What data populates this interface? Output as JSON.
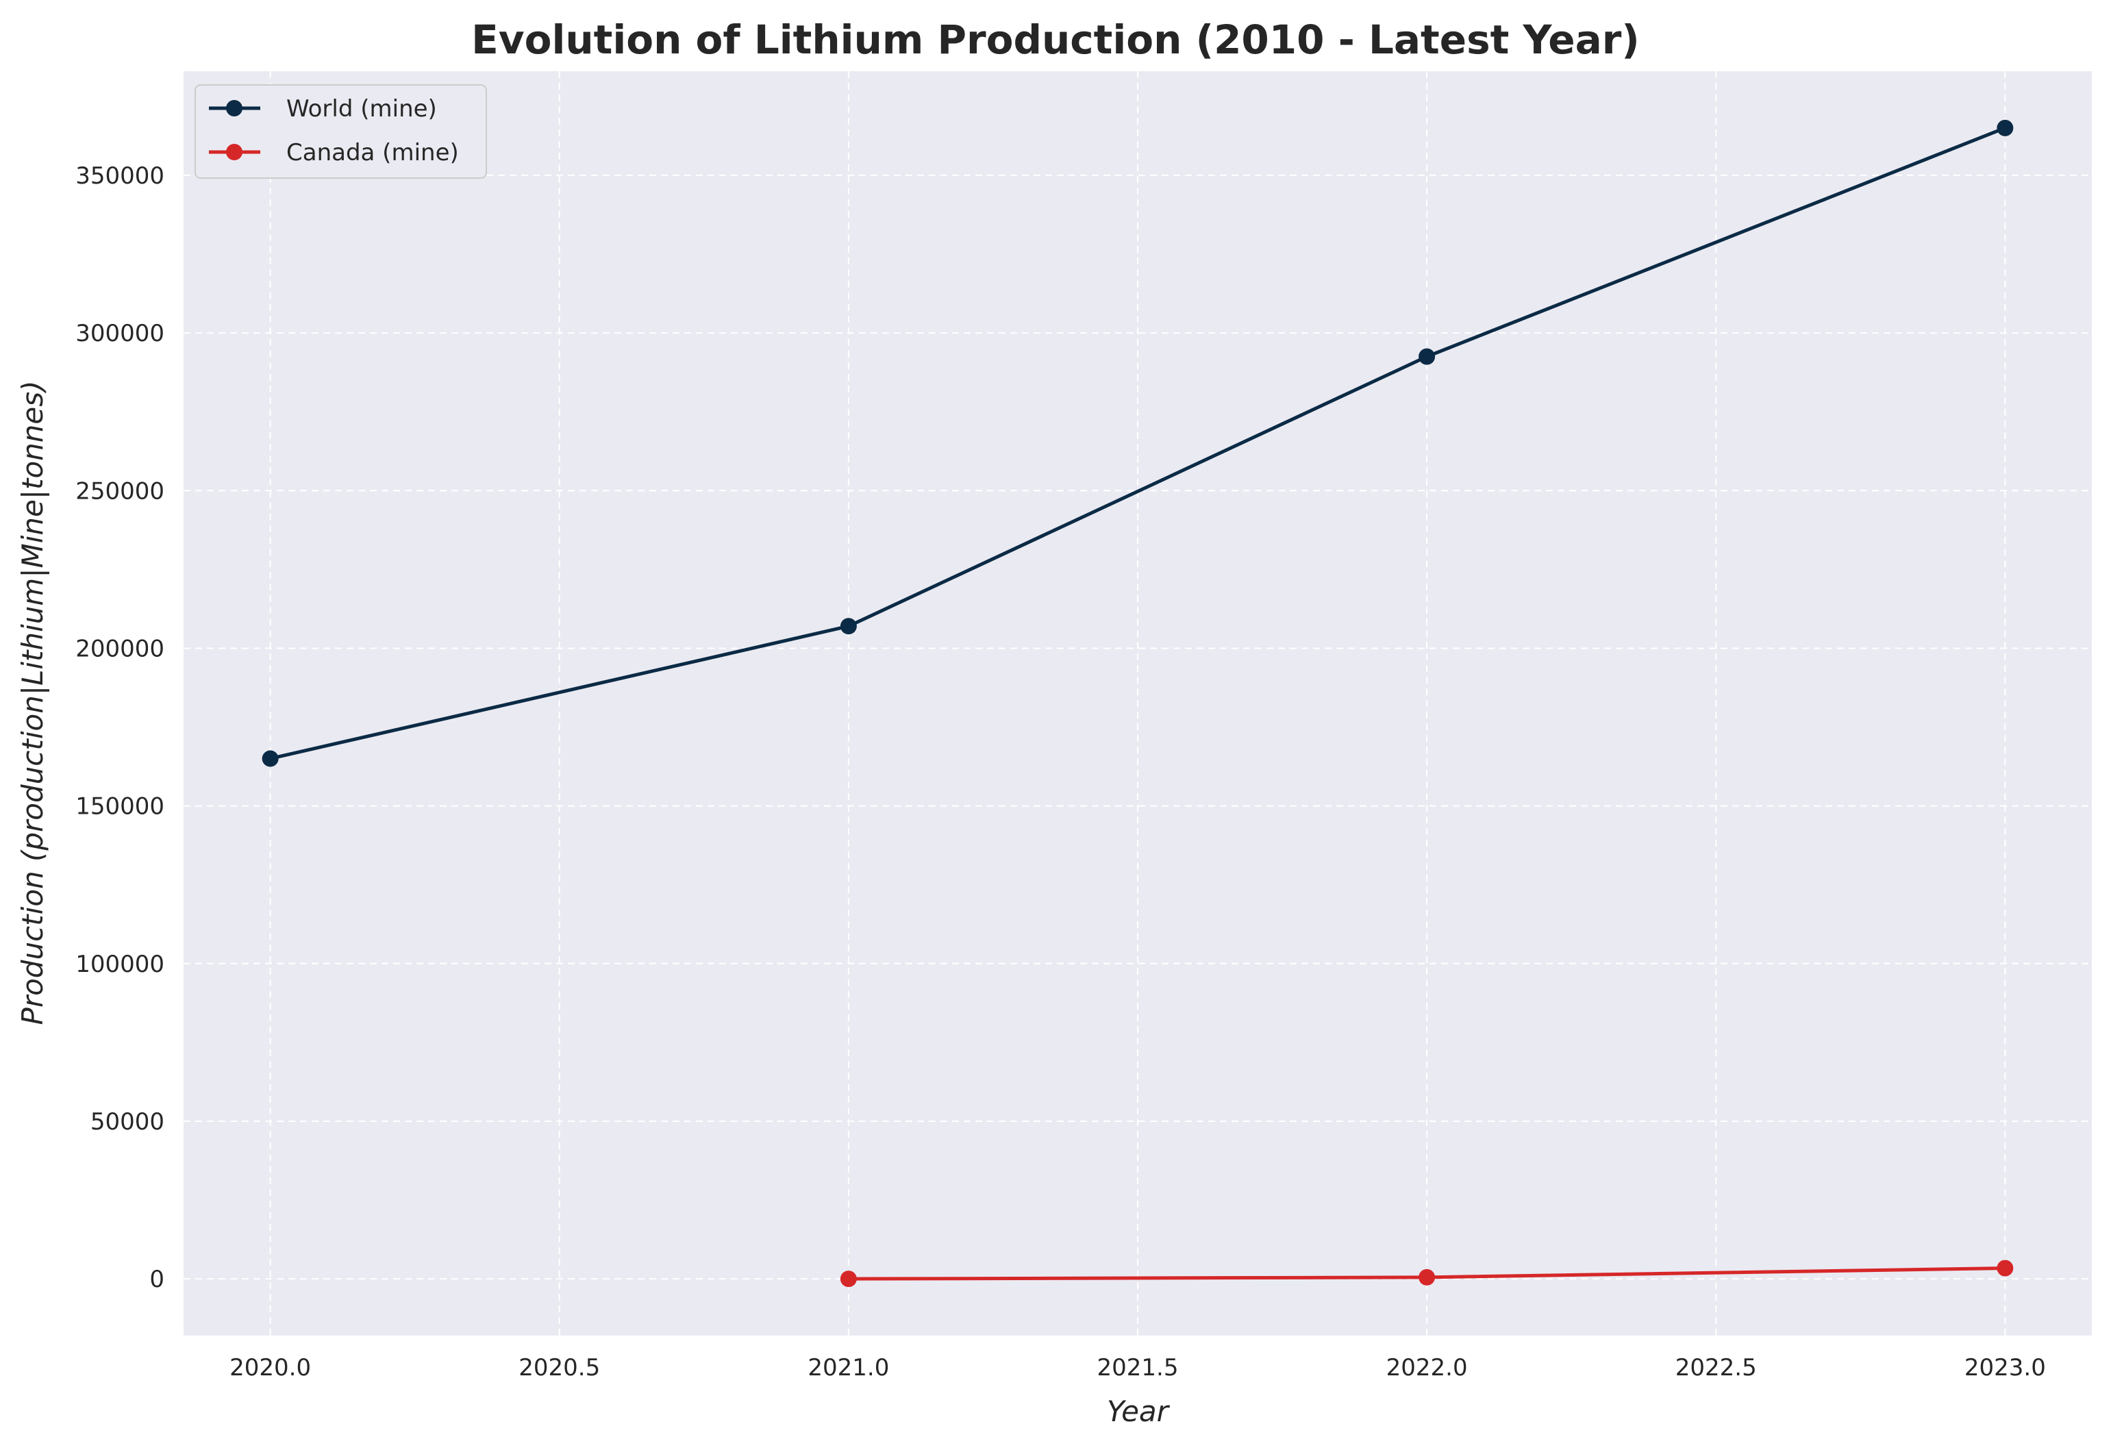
{
  "chart_data": {
    "type": "line",
    "title": "Evolution of Lithium Production (2010 - Latest Year)",
    "xlabel": "Year",
    "ylabel": "Production (production|Lithium|Mine|tonnes)",
    "xlim": [
      2019.85,
      2023.15
    ],
    "ylim": [
      -18000,
      383000
    ],
    "xticks": [
      2020.0,
      2020.5,
      2021.0,
      2021.5,
      2022.0,
      2022.5,
      2023.0
    ],
    "xtick_labels": [
      "2020.0",
      "2020.5",
      "2021.0",
      "2021.5",
      "2022.0",
      "2022.5",
      "2023.0"
    ],
    "yticks": [
      0,
      50000,
      100000,
      150000,
      200000,
      250000,
      300000,
      350000
    ],
    "ytick_labels": [
      "0",
      "50000",
      "100000",
      "150000",
      "200000",
      "250000",
      "300000",
      "350000"
    ],
    "grid": true,
    "legend_position": "top-left",
    "series": [
      {
        "name": "World (mine)",
        "color": "#0b2a45",
        "x": [
          2020,
          2021,
          2022,
          2023
        ],
        "y": [
          165000,
          207000,
          292500,
          365000
        ]
      },
      {
        "name": "Canada (mine)",
        "color": "#d62728",
        "x": [
          2021,
          2022,
          2023
        ],
        "y": [
          0,
          500,
          3400
        ]
      }
    ]
  }
}
